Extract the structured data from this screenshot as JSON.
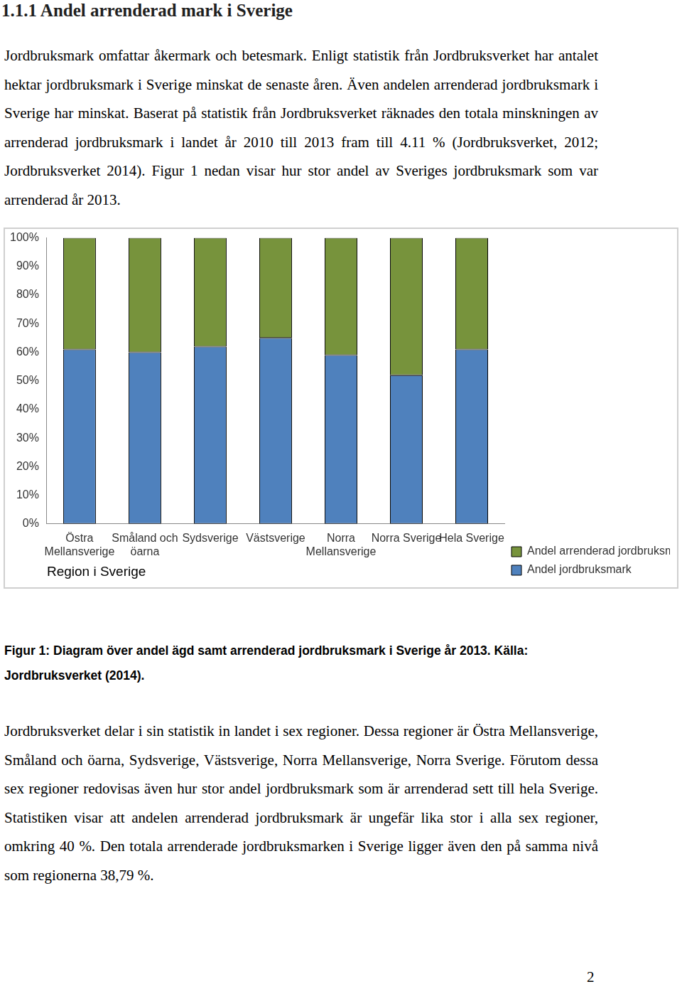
{
  "heading": "1.1.1 Andel arrenderad mark i Sverige",
  "paragraphs": [
    "Jordbruksmark omfattar åkermark och betesmark. Enligt statistik från Jordbruksverket har antalet hektar jordbruksmark i Sverige minskat de senaste åren. Även andelen arrenderad jordbruksmark i Sverige har minskat. Baserat på statistik från Jordbruksverket räknades den totala minskningen av arrenderad jordbruksmark i landet år 2010 till 2013 fram till 4.11 % (Jordbruksverket, 2012; Jordbruksverket 2014). Figur 1 nedan visar hur stor andel av Sveriges jordbruksmark som var arrenderad år 2013.",
    "Jordbruksverket delar i sin statistik in landet i sex regioner. Dessa regioner är Östra Mellansverige, Småland och öarna, Sydsverige, Västsverige, Norra Mellansverige, Norra Sverige. Förutom dessa sex regioner redovisas även hur stor andel jordbruksmark som är arrenderad sett till hela Sverige. Statistiken visar att andelen arrenderad jordbruksmark är ungefär lika stor i alla sex regioner, omkring 40 %. Den totala arrenderade jordbruksmarken i Sverige ligger även den på samma nivå som regionerna 38,79 %."
  ],
  "chart_data": {
    "type": "bar",
    "x_label": "Region i Sverige",
    "categories": [
      "Östra Mellansverige",
      "Småland och öarna",
      "Sydsverige",
      "Västsverige",
      "Norra Mellansverige",
      "Norra Sverige",
      "Hela Sverige"
    ],
    "series": [
      {
        "name": "Andel jordbruksmark",
        "color": "#4f81bd",
        "values": [
          61,
          60,
          62,
          65,
          59,
          52,
          61
        ]
      },
      {
        "name": "Andel arrenderad jordbruksmark",
        "color": "#77933c",
        "values": [
          39,
          40,
          38,
          35,
          41,
          48,
          39
        ]
      }
    ],
    "stacked": true,
    "grid": false,
    "legend": "right",
    "ylim": [
      0,
      100
    ],
    "yticks": [
      {
        "value": 0,
        "label": "0%"
      },
      {
        "value": 10,
        "label": "10%"
      },
      {
        "value": 20,
        "label": "20%"
      },
      {
        "value": 30,
        "label": "30%"
      },
      {
        "value": 40,
        "label": "40%"
      },
      {
        "value": 50,
        "label": "50%"
      },
      {
        "value": 60,
        "label": "60%"
      },
      {
        "value": 70,
        "label": "70%"
      },
      {
        "value": 80,
        "label": "80%"
      },
      {
        "value": 90,
        "label": "90%"
      },
      {
        "value": 100,
        "label": "100%"
      }
    ]
  },
  "caption": "Figur 1: Diagram över andel ägd samt arrenderad jordbruksmark i Sverige år 2013. Källa: Jordbruksverket (2014).",
  "page_number": 2
}
